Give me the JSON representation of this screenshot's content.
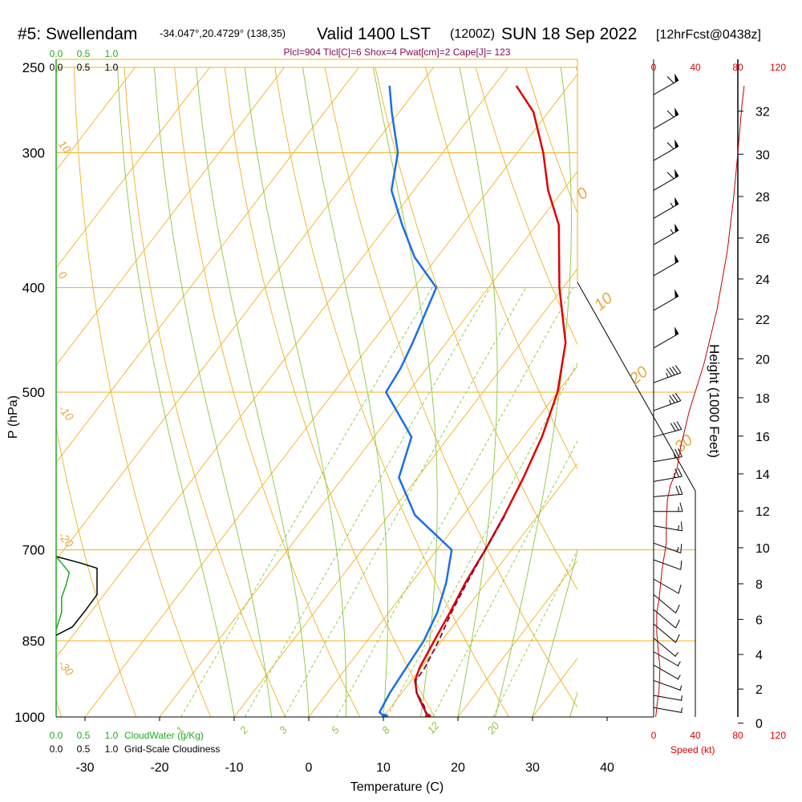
{
  "header": {
    "station": "#5: Swellendam",
    "coords": "-34.047°,20.4729° (138,35)",
    "valid": "Valid 1400 LST",
    "zulu": "(1200Z)",
    "date": "SUN 18 Sep 2022",
    "forecast": "[12hrFcst@0438z]",
    "indices": "Plcl=904 Tlcl[C]=6 Shox=4 Pwat[cm]=2 Cape[J]= 123"
  },
  "colors": {
    "temperature": "#e00000",
    "dewpoint": "#1a6ee8",
    "parcel": "#800040",
    "isobar": "#f0b020",
    "dry_adiabat": "#f0b020",
    "moist_adiabat": "#8cc63f",
    "mixing_ratio": "#8cc63f",
    "cloudwater": "#22aa22",
    "wind_speed": "#c00000"
  },
  "chart_data": {
    "type": "line",
    "xlabel": "Temperature (C)",
    "ylabel": "P (hPa)",
    "right_label": "Height (1000 Feet)",
    "x_ticks": [
      -30,
      -20,
      -10,
      0,
      10,
      20,
      30,
      40
    ],
    "p_ticks": [
      250,
      300,
      400,
      500,
      700,
      850,
      1000
    ],
    "height_ticks": [
      0,
      2,
      4,
      6,
      8,
      10,
      12,
      14,
      16,
      18,
      20,
      22,
      24,
      26,
      28,
      30,
      32
    ],
    "cloudwater_ticks": [
      "0.0",
      "0.5",
      "1.0"
    ],
    "cloudiness_ticks": [
      "0.0",
      "0.5",
      "1.0"
    ],
    "speed_ticks": [
      "0",
      "40",
      "80",
      "120"
    ],
    "cloudwater_label": "CloudWater (g/Kg)",
    "cloudiness_label": "Grid-Scale Cloudiness",
    "speed_label": "Speed (kt)",
    "isotherm_labels": [
      "10",
      "0",
      "-10",
      "-20",
      "-30",
      "0",
      "10",
      "20",
      "30"
    ],
    "mixing_ratio_labels": [
      "1",
      "2",
      "3",
      "5",
      "8",
      "12",
      "20"
    ],
    "series": [
      {
        "name": "temperature",
        "points": [
          [
            16,
            1000
          ],
          [
            14,
            975
          ],
          [
            12,
            950
          ],
          [
            10.5,
            925
          ],
          [
            9.8,
            900
          ],
          [
            9.4,
            875
          ],
          [
            9.0,
            850
          ],
          [
            8.2,
            800
          ],
          [
            7.2,
            750
          ],
          [
            6.5,
            700
          ],
          [
            5.5,
            650
          ],
          [
            4.2,
            600
          ],
          [
            2.5,
            550
          ],
          [
            0,
            500
          ],
          [
            -4,
            450
          ],
          [
            -10.5,
            400
          ],
          [
            -17,
            350
          ],
          [
            -22,
            325
          ],
          [
            -26.5,
            300
          ],
          [
            -32,
            275
          ],
          [
            -37,
            260
          ]
        ]
      },
      {
        "name": "dewpoint",
        "points": [
          [
            10.2,
            1000
          ],
          [
            9.0,
            990
          ],
          [
            8.4,
            950
          ],
          [
            8.0,
            900
          ],
          [
            7.6,
            850
          ],
          [
            6.5,
            800
          ],
          [
            4.6,
            750
          ],
          [
            2.0,
            700
          ],
          [
            -6.5,
            650
          ],
          [
            -12.5,
            600
          ],
          [
            -15,
            550
          ],
          [
            -23,
            500
          ],
          [
            -23.5,
            475
          ],
          [
            -24.5,
            450
          ],
          [
            -27,
            400
          ],
          [
            -33,
            375
          ],
          [
            -38,
            350
          ],
          [
            -43,
            325
          ],
          [
            -46,
            300
          ],
          [
            -51,
            275
          ],
          [
            -54,
            260
          ]
        ]
      },
      {
        "name": "parcel",
        "points": [
          [
            16,
            1000
          ],
          [
            14.2,
            975
          ],
          [
            12.0,
            950
          ],
          [
            10.6,
            925
          ],
          [
            10.5,
            900
          ],
          [
            9.6,
            850
          ],
          [
            8.4,
            800
          ],
          [
            7.4,
            750
          ],
          [
            6.5,
            700
          ],
          [
            5.6,
            650
          ]
        ]
      }
    ],
    "cloudwater": [
      [
        0.0,
        710
      ],
      [
        0.12,
        722
      ],
      [
        0.24,
        735
      ],
      [
        0.18,
        755
      ],
      [
        0.1,
        775
      ],
      [
        0.1,
        800
      ],
      [
        0.05,
        815
      ],
      [
        0.0,
        830
      ]
    ],
    "cloudiness": [
      [
        0.0,
        710
      ],
      [
        0.45,
        720
      ],
      [
        0.75,
        728
      ],
      [
        0.75,
        770
      ],
      [
        0.55,
        795
      ],
      [
        0.3,
        825
      ],
      [
        0.0,
        840
      ]
    ],
    "wind_speed": [
      [
        2,
        1000
      ],
      [
        3,
        980
      ],
      [
        4,
        960
      ],
      [
        5,
        950
      ],
      [
        6,
        900
      ],
      [
        4,
        860
      ],
      [
        3,
        835
      ],
      [
        3,
        800
      ],
      [
        5,
        780
      ],
      [
        8,
        730
      ],
      [
        12,
        690
      ],
      [
        12,
        660
      ],
      [
        13,
        630
      ],
      [
        16,
        610
      ],
      [
        22,
        590
      ],
      [
        26,
        560
      ],
      [
        34,
        520
      ],
      [
        48,
        470
      ],
      [
        60,
        420
      ],
      [
        70,
        370
      ],
      [
        76,
        330
      ],
      [
        80,
        300
      ],
      [
        84,
        270
      ],
      [
        86,
        260
      ]
    ],
    "wind_barbs": [
      {
        "p": 265,
        "dir": 300,
        "spd": 60
      },
      {
        "p": 285,
        "dir": 300,
        "spd": 60
      },
      {
        "p": 305,
        "dir": 300,
        "spd": 60
      },
      {
        "p": 325,
        "dir": 300,
        "spd": 60
      },
      {
        "p": 345,
        "dir": 300,
        "spd": 55
      },
      {
        "p": 365,
        "dir": 300,
        "spd": 55
      },
      {
        "p": 390,
        "dir": 300,
        "spd": 50
      },
      {
        "p": 420,
        "dir": 300,
        "spd": 50
      },
      {
        "p": 455,
        "dir": 300,
        "spd": 50
      },
      {
        "p": 490,
        "dir": 290,
        "spd": 45
      },
      {
        "p": 520,
        "dir": 290,
        "spd": 35
      },
      {
        "p": 550,
        "dir": 285,
        "spd": 30
      },
      {
        "p": 580,
        "dir": 280,
        "spd": 25
      },
      {
        "p": 605,
        "dir": 280,
        "spd": 25
      },
      {
        "p": 625,
        "dir": 275,
        "spd": 20
      },
      {
        "p": 645,
        "dir": 270,
        "spd": 15
      },
      {
        "p": 665,
        "dir": 260,
        "spd": 15
      },
      {
        "p": 690,
        "dir": 250,
        "spd": 15
      },
      {
        "p": 715,
        "dir": 250,
        "spd": 10
      },
      {
        "p": 745,
        "dir": 240,
        "spd": 10
      },
      {
        "p": 770,
        "dir": 230,
        "spd": 10
      },
      {
        "p": 795,
        "dir": 230,
        "spd": 10
      },
      {
        "p": 820,
        "dir": 230,
        "spd": 10
      },
      {
        "p": 845,
        "dir": 230,
        "spd": 5
      },
      {
        "p": 870,
        "dir": 240,
        "spd": 5
      },
      {
        "p": 895,
        "dir": 240,
        "spd": 5
      },
      {
        "p": 925,
        "dir": 250,
        "spd": 5
      },
      {
        "p": 955,
        "dir": 260,
        "spd": 5
      },
      {
        "p": 980,
        "dir": 260,
        "spd": 5
      }
    ]
  }
}
